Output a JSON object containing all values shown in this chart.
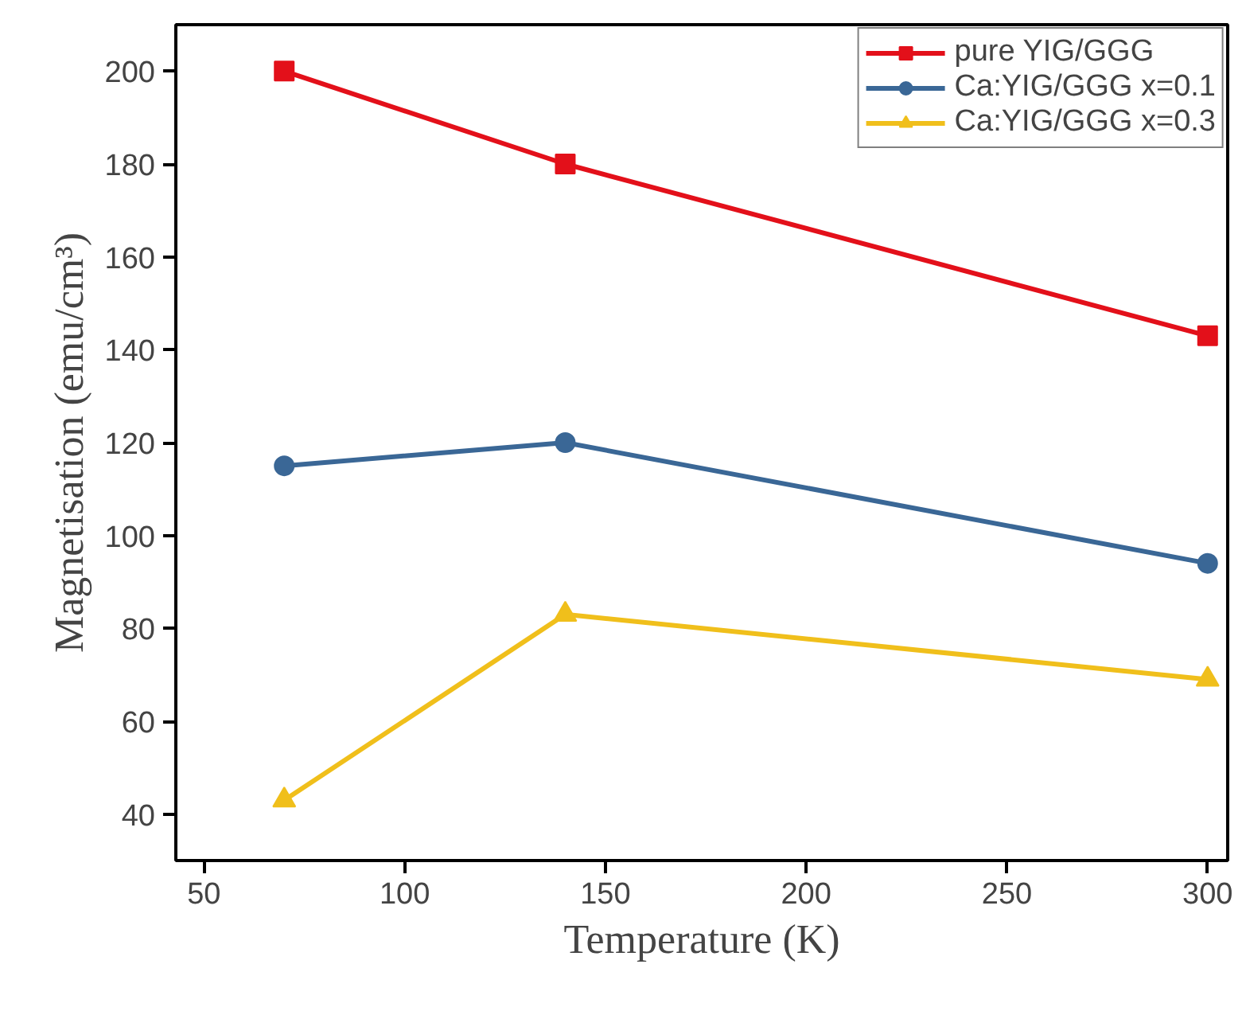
{
  "chart_data": {
    "type": "line",
    "xlabel": "Temperature (K)",
    "ylabel": "Magnetisation (emu/cm³)",
    "x": [
      70,
      140,
      300
    ],
    "series": [
      {
        "name": "pure YIG/GGG",
        "color": "#e3101a",
        "marker": "square",
        "values": [
          200,
          180,
          143
        ]
      },
      {
        "name": "Ca:YIG/GGG x=0.1",
        "color": "#3a6796",
        "marker": "circle",
        "values": [
          115,
          120,
          94
        ]
      },
      {
        "name": "Ca:YIG/GGG x=0.3",
        "color": "#f0bf1b",
        "marker": "triangle",
        "values": [
          43,
          83,
          69
        ]
      }
    ],
    "xlim": [
      43,
      305
    ],
    "ylim": [
      30,
      210
    ],
    "xticks": [
      50,
      100,
      150,
      200,
      250,
      300
    ],
    "yticks": [
      40,
      60,
      80,
      100,
      120,
      140,
      160,
      180,
      200
    ],
    "grid": false,
    "legend": "top right",
    "line_style": "solid"
  }
}
